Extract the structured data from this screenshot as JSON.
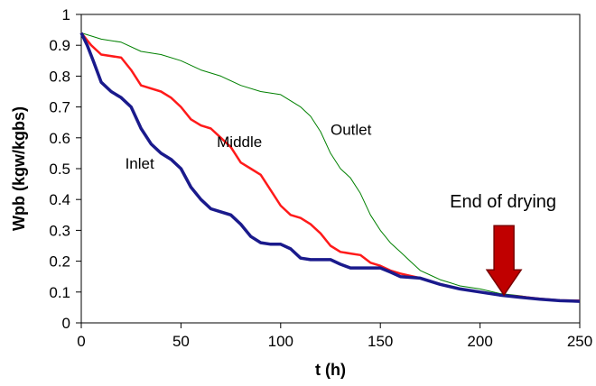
{
  "chart_data": {
    "type": "line",
    "title": "",
    "xlabel": "t (h)",
    "ylabel": "Wpb (kgw/kgbs)",
    "xlim": [
      0,
      250
    ],
    "ylim": [
      0,
      1
    ],
    "xticks": [
      "0",
      "50",
      "100",
      "150",
      "200",
      "250"
    ],
    "yticks": [
      "0",
      "0.1",
      "0.2",
      "0.3",
      "0.4",
      "0.5",
      "0.6",
      "0.7",
      "0.8",
      "0.9",
      "1"
    ],
    "grid": false,
    "legend": "none",
    "annotations": [
      {
        "text": "End of drying",
        "x": 212,
        "y_text": 0.375,
        "arrow_from": 0.315,
        "arrow_to": 0.09,
        "color": "#c00000"
      }
    ],
    "series": [
      {
        "name": "Inlet",
        "color": "#1a1a8c",
        "label_at": [
          22,
          0.5
        ],
        "x": [
          0,
          3,
          6,
          10,
          15,
          20,
          25,
          30,
          35,
          40,
          45,
          50,
          55,
          60,
          65,
          70,
          75,
          80,
          85,
          90,
          95,
          100,
          105,
          110,
          115,
          120,
          125,
          130,
          135,
          140,
          145,
          150,
          155,
          160,
          170,
          180,
          190,
          200,
          210,
          220,
          230,
          240,
          250
        ],
        "y": [
          0.94,
          0.9,
          0.85,
          0.78,
          0.75,
          0.73,
          0.7,
          0.63,
          0.58,
          0.55,
          0.53,
          0.5,
          0.44,
          0.4,
          0.37,
          0.36,
          0.35,
          0.32,
          0.28,
          0.26,
          0.255,
          0.255,
          0.24,
          0.21,
          0.205,
          0.205,
          0.205,
          0.19,
          0.178,
          0.178,
          0.178,
          0.178,
          0.165,
          0.15,
          0.145,
          0.125,
          0.11,
          0.1,
          0.09,
          0.083,
          0.077,
          0.072,
          0.07
        ]
      },
      {
        "name": "Middle",
        "color": "#ff1a1a",
        "label_at": [
          68,
          0.57
        ],
        "x": [
          0,
          5,
          10,
          20,
          25,
          30,
          40,
          45,
          50,
          55,
          60,
          65,
          70,
          75,
          80,
          85,
          90,
          95,
          100,
          105,
          110,
          115,
          120,
          125,
          130,
          135,
          140,
          145,
          150,
          155,
          160,
          170,
          180,
          190,
          200,
          210,
          220,
          230,
          240,
          250
        ],
        "y": [
          0.94,
          0.9,
          0.87,
          0.86,
          0.82,
          0.77,
          0.75,
          0.73,
          0.7,
          0.66,
          0.64,
          0.63,
          0.6,
          0.57,
          0.52,
          0.5,
          0.48,
          0.43,
          0.38,
          0.35,
          0.34,
          0.32,
          0.29,
          0.25,
          0.23,
          0.225,
          0.22,
          0.195,
          0.185,
          0.17,
          0.16,
          0.145,
          0.125,
          0.11,
          0.1,
          0.09,
          0.085,
          0.078,
          0.073,
          0.072
        ]
      },
      {
        "name": "Outlet",
        "color": "#008000",
        "label_at": [
          125,
          0.61
        ],
        "x": [
          0,
          5,
          10,
          20,
          30,
          40,
          50,
          60,
          70,
          80,
          90,
          100,
          110,
          115,
          120,
          125,
          130,
          135,
          140,
          145,
          150,
          155,
          160,
          165,
          170,
          175,
          180,
          185,
          190,
          200,
          210,
          220,
          230,
          240,
          250
        ],
        "y": [
          0.94,
          0.93,
          0.92,
          0.91,
          0.88,
          0.87,
          0.85,
          0.82,
          0.8,
          0.77,
          0.75,
          0.74,
          0.7,
          0.67,
          0.62,
          0.55,
          0.5,
          0.47,
          0.42,
          0.35,
          0.3,
          0.26,
          0.23,
          0.2,
          0.17,
          0.155,
          0.14,
          0.13,
          0.12,
          0.11,
          0.095,
          0.088,
          0.078,
          0.073,
          0.07
        ]
      }
    ]
  }
}
